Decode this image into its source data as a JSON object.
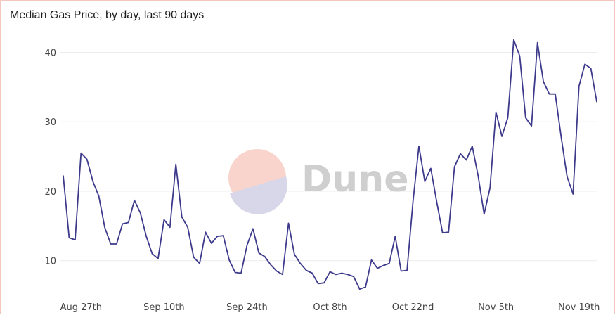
{
  "chart_data": {
    "type": "line",
    "title": "Median Gas Price, by day, last 90 days",
    "xlabel": "",
    "ylabel": "",
    "ylim": [
      4.5,
      44
    ],
    "yticks": [
      10,
      20,
      30,
      40
    ],
    "xlim": [
      "2021-08-24",
      "2021-11-22"
    ],
    "xtick_labels": [
      {
        "date": "2021-08-27",
        "label": "Aug 27th"
      },
      {
        "date": "2021-09-10",
        "label": "Sep 10th"
      },
      {
        "date": "2021-09-24",
        "label": "Sep 24th"
      },
      {
        "date": "2021-10-08",
        "label": "Oct 8th"
      },
      {
        "date": "2021-10-22",
        "label": "Oct 22nd"
      },
      {
        "date": "2021-11-05",
        "label": "Nov 5th"
      },
      {
        "date": "2021-11-19",
        "label": "Nov 19th"
      }
    ],
    "grid": true,
    "line_color": "#3d3a8c",
    "series": [
      {
        "x": [
          "2021-08-24",
          "2021-08-25",
          "2021-08-26",
          "2021-08-27",
          "2021-08-28",
          "2021-08-29",
          "2021-08-30",
          "2021-08-31",
          "2021-09-01",
          "2021-09-02",
          "2021-09-03",
          "2021-09-04",
          "2021-09-05",
          "2021-09-06",
          "2021-09-07",
          "2021-09-08",
          "2021-09-09",
          "2021-09-10",
          "2021-09-11",
          "2021-09-12",
          "2021-09-13",
          "2021-09-14",
          "2021-09-15",
          "2021-09-16",
          "2021-09-17",
          "2021-09-18",
          "2021-09-19",
          "2021-09-20",
          "2021-09-21",
          "2021-09-22",
          "2021-09-23",
          "2021-09-24",
          "2021-09-25",
          "2021-09-26",
          "2021-09-27",
          "2021-09-28",
          "2021-09-29",
          "2021-09-30",
          "2021-10-01",
          "2021-10-02",
          "2021-10-03",
          "2021-10-04",
          "2021-10-05",
          "2021-10-06",
          "2021-10-07",
          "2021-10-08",
          "2021-10-09",
          "2021-10-10",
          "2021-10-11",
          "2021-10-12",
          "2021-10-13",
          "2021-10-14",
          "2021-10-15",
          "2021-10-16",
          "2021-10-17",
          "2021-10-18",
          "2021-10-19",
          "2021-10-20",
          "2021-10-21",
          "2021-10-22",
          "2021-10-23",
          "2021-10-24",
          "2021-10-25",
          "2021-10-26",
          "2021-10-27",
          "2021-10-28",
          "2021-10-29",
          "2021-10-30",
          "2021-10-31",
          "2021-11-01",
          "2021-11-02",
          "2021-11-03",
          "2021-11-04",
          "2021-11-05",
          "2021-11-06",
          "2021-11-07",
          "2021-11-08",
          "2021-11-09",
          "2021-11-10",
          "2021-11-11",
          "2021-11-12",
          "2021-11-13",
          "2021-11-14",
          "2021-11-15",
          "2021-11-16",
          "2021-11-17",
          "2021-11-18",
          "2021-11-19",
          "2021-11-20",
          "2021-11-21",
          "2021-11-22"
        ],
        "y": [
          22.2,
          13.3,
          13.0,
          25.5,
          24.6,
          21.4,
          19.3,
          14.8,
          12.4,
          12.4,
          15.3,
          15.5,
          18.7,
          16.9,
          13.5,
          11.0,
          10.3,
          15.9,
          14.8,
          23.9,
          16.3,
          14.8,
          10.5,
          9.6,
          14.1,
          12.5,
          13.5,
          13.6,
          10.1,
          8.3,
          8.2,
          12.2,
          14.6,
          11.1,
          10.6,
          9.4,
          8.5,
          8.0,
          15.4,
          10.9,
          9.6,
          8.6,
          8.2,
          6.7,
          6.8,
          8.4,
          8.0,
          8.2,
          8.0,
          7.7,
          5.9,
          6.2,
          10.1,
          8.9,
          9.3,
          9.6,
          13.5,
          8.5,
          8.6,
          18.5,
          26.5,
          21.4,
          23.3,
          18.5,
          14.0,
          14.1,
          23.5,
          25.4,
          24.5,
          26.5,
          22.2,
          16.7,
          20.5,
          31.4,
          27.9,
          30.6,
          41.8,
          39.5,
          30.6,
          29.4,
          41.4,
          35.8,
          34.0,
          34.0,
          27.8,
          22.1,
          19.6,
          35.1,
          38.3,
          37.7,
          32.9
        ]
      }
    ]
  },
  "watermark": {
    "text": "Dune",
    "logo_colors": [
      "#f9d4cc",
      "#d8d7ea"
    ]
  },
  "colors": {
    "frame_border": "#f3c7bf",
    "grid": "#ececec",
    "axis_text": "#444444"
  }
}
